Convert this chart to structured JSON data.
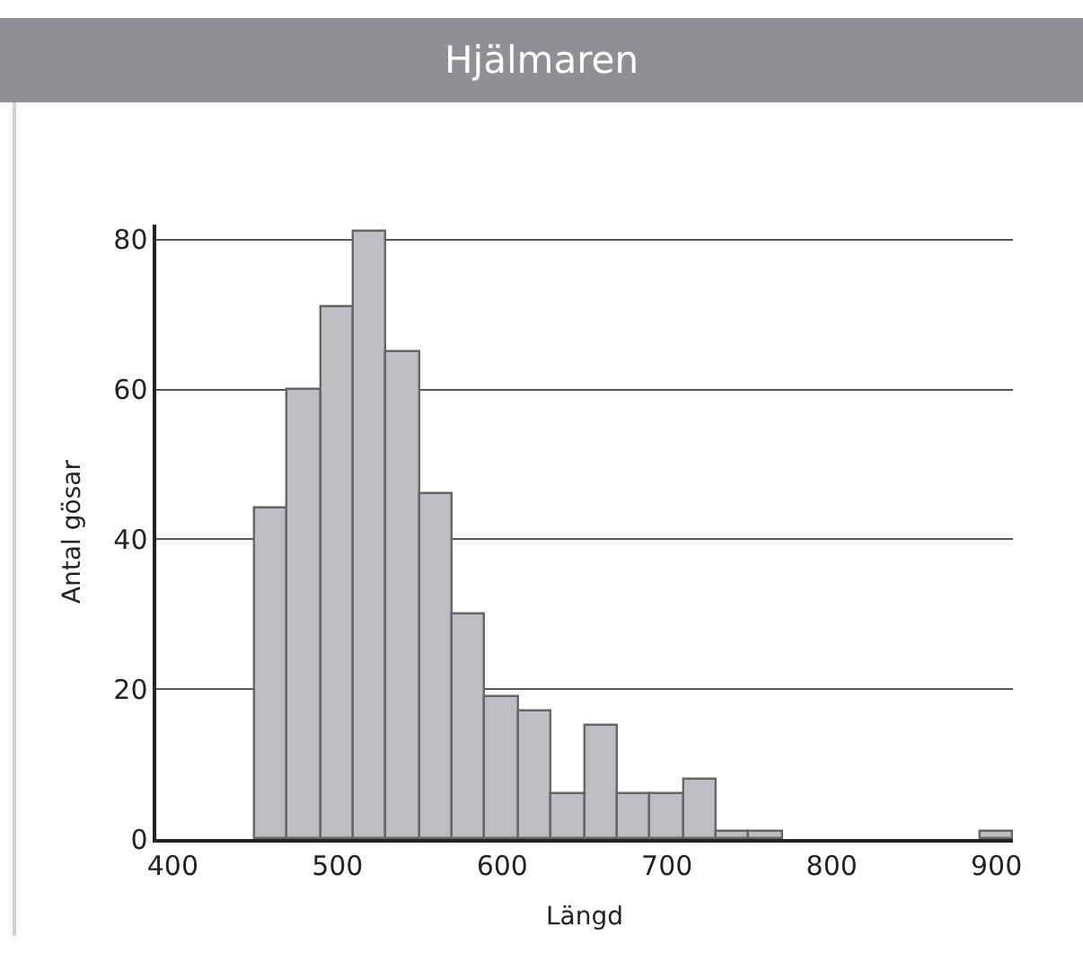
{
  "chart_data": {
    "type": "histogram",
    "title": "Hjälmaren",
    "xlabel": "Längd",
    "ylabel": "Antal gösar",
    "bins": [
      450,
      470,
      490,
      510,
      530,
      550,
      570,
      590,
      610,
      630,
      650,
      670,
      690,
      710,
      730,
      750,
      770,
      790,
      810,
      830,
      850,
      870,
      890,
      910
    ],
    "values": [
      44,
      60,
      71,
      81,
      65,
      46,
      30,
      19,
      17,
      6,
      15,
      6,
      6,
      8,
      1,
      1,
      0,
      0,
      0,
      0,
      0,
      0,
      1
    ],
    "color": "#bdbec2",
    "xlim": [
      390,
      910
    ],
    "xticks": [
      400,
      500,
      600,
      700,
      800,
      900
    ],
    "ylim": [
      0,
      82
    ],
    "yticks": [
      0,
      20,
      40,
      60,
      80
    ],
    "grid": "y"
  }
}
